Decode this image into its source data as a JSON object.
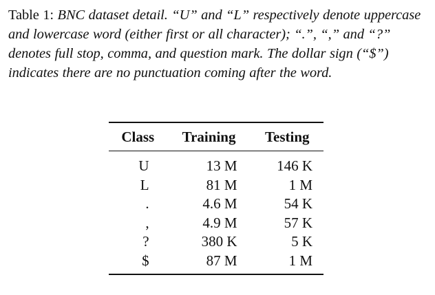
{
  "caption": {
    "label": "Table 1:",
    "text": "BNC dataset detail. “U” and “L” respectively denote uppercase and lowercase word (either first or all character); “.”, “,” and “?” denotes full stop, comma, and question mark. The dollar sign (“$”) indicates there are no punctuation coming after the word."
  },
  "table": {
    "headers": {
      "class": "Class",
      "training": "Training",
      "testing": "Testing"
    },
    "rows": [
      {
        "class": "U",
        "training": "13 M",
        "testing": "146 K"
      },
      {
        "class": "L",
        "training": "81 M",
        "testing": "1 M"
      },
      {
        "class": ".",
        "training": "4.6 M",
        "testing": "54 K"
      },
      {
        "class": ",",
        "training": "4.9 M",
        "testing": "57 K"
      },
      {
        "class": "?",
        "training": "380 K",
        "testing": "5 K"
      },
      {
        "class": "$",
        "training": "87 M",
        "testing": "1 M"
      }
    ]
  }
}
